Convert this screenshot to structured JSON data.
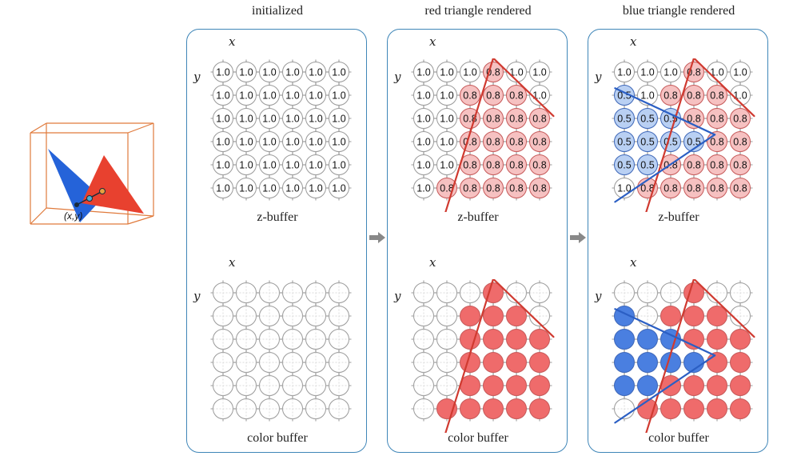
{
  "panels": [
    {
      "id": "initialized",
      "title": "initialized",
      "x_label": "x",
      "y_label": "y",
      "zbuffer_label": "z-buffer",
      "colorbuffer_label": "color buffer",
      "zbuffer": [
        [
          "1.0",
          "1.0",
          "1.0",
          "1.0",
          "1.0",
          "1.0"
        ],
        [
          "1.0",
          "1.0",
          "1.0",
          "1.0",
          "1.0",
          "1.0"
        ],
        [
          "1.0",
          "1.0",
          "1.0",
          "1.0",
          "1.0",
          "1.0"
        ],
        [
          "1.0",
          "1.0",
          "1.0",
          "1.0",
          "1.0",
          "1.0"
        ],
        [
          "1.0",
          "1.0",
          "1.0",
          "1.0",
          "1.0",
          "1.0"
        ],
        [
          "1.0",
          "1.0",
          "1.0",
          "1.0",
          "1.0",
          "1.0"
        ]
      ],
      "colors": [
        [
          "n",
          "n",
          "n",
          "n",
          "n",
          "n"
        ],
        [
          "n",
          "n",
          "n",
          "n",
          "n",
          "n"
        ],
        [
          "n",
          "n",
          "n",
          "n",
          "n",
          "n"
        ],
        [
          "n",
          "n",
          "n",
          "n",
          "n",
          "n"
        ],
        [
          "n",
          "n",
          "n",
          "n",
          "n",
          "n"
        ],
        [
          "n",
          "n",
          "n",
          "n",
          "n",
          "n"
        ]
      ],
      "edges": []
    },
    {
      "id": "red",
      "title": "red triangle rendered",
      "x_label": "x",
      "y_label": "y",
      "zbuffer_label": "z-buffer",
      "colorbuffer_label": "color buffer",
      "zbuffer": [
        [
          "1.0",
          "1.0",
          "1.0",
          "0.8",
          "1.0",
          "1.0"
        ],
        [
          "1.0",
          "1.0",
          "0.8",
          "0.8",
          "0.8",
          "1.0"
        ],
        [
          "1.0",
          "1.0",
          "0.8",
          "0.8",
          "0.8",
          "0.8"
        ],
        [
          "1.0",
          "1.0",
          "0.8",
          "0.8",
          "0.8",
          "0.8"
        ],
        [
          "1.0",
          "1.0",
          "0.8",
          "0.8",
          "0.8",
          "0.8"
        ],
        [
          "1.0",
          "0.8",
          "0.8",
          "0.8",
          "0.8",
          "0.8"
        ]
      ],
      "colors": [
        [
          "n",
          "n",
          "n",
          "r",
          "n",
          "n"
        ],
        [
          "n",
          "n",
          "r",
          "r",
          "r",
          "n"
        ],
        [
          "n",
          "n",
          "r",
          "r",
          "r",
          "r"
        ],
        [
          "n",
          "n",
          "r",
          "r",
          "r",
          "r"
        ],
        [
          "n",
          "n",
          "r",
          "r",
          "r",
          "r"
        ],
        [
          "n",
          "r",
          "r",
          "r",
          "r",
          "r"
        ]
      ],
      "edges": [
        {
          "color": "#d03a30",
          "points": [
            [
              0.8,
              6.5
            ],
            [
              3.0,
              -0.6
            ]
          ]
        },
        {
          "color": "#d03a30",
          "points": [
            [
              3.0,
              -0.6
            ],
            [
              5.6,
              1.9
            ]
          ]
        }
      ]
    },
    {
      "id": "blue",
      "title": "blue triangle rendered",
      "x_label": "x",
      "y_label": "y",
      "zbuffer_label": "z-buffer",
      "colorbuffer_label": "color buffer",
      "zbuffer": [
        [
          "1.0",
          "1.0",
          "1.0",
          "0.8",
          "1.0",
          "1.0"
        ],
        [
          "0.5",
          "1.0",
          "0.8",
          "0.8",
          "0.8",
          "1.0"
        ],
        [
          "0.5",
          "0.5",
          "0.5",
          "0.8",
          "0.8",
          "0.8"
        ],
        [
          "0.5",
          "0.5",
          "0.5",
          "0.5",
          "0.8",
          "0.8"
        ],
        [
          "0.5",
          "0.5",
          "0.8",
          "0.8",
          "0.8",
          "0.8"
        ],
        [
          "1.0",
          "0.8",
          "0.8",
          "0.8",
          "0.8",
          "0.8"
        ]
      ],
      "colors": [
        [
          "n",
          "n",
          "n",
          "r",
          "n",
          "n"
        ],
        [
          "b",
          "n",
          "r",
          "r",
          "r",
          "n"
        ],
        [
          "b",
          "b",
          "b",
          "r",
          "r",
          "r"
        ],
        [
          "b",
          "b",
          "b",
          "b",
          "r",
          "r"
        ],
        [
          "b",
          "b",
          "r",
          "r",
          "r",
          "r"
        ],
        [
          "n",
          "r",
          "r",
          "r",
          "r",
          "r"
        ]
      ],
      "edges": [
        {
          "color": "#d03a30",
          "points": [
            [
              0.8,
              6.5
            ],
            [
              3.0,
              -0.6
            ]
          ]
        },
        {
          "color": "#d03a30",
          "points": [
            [
              3.0,
              -0.6
            ],
            [
              5.6,
              1.9
            ]
          ]
        },
        {
          "color": "#2b5fc4",
          "points": [
            [
              -0.4,
              0.7
            ],
            [
              3.9,
              2.7
            ]
          ]
        },
        {
          "color": "#2b5fc4",
          "points": [
            [
              3.9,
              2.7
            ],
            [
              -0.4,
              5.6
            ]
          ]
        }
      ]
    }
  ],
  "palette": {
    "red_fill": "#ef6b6b",
    "red_light": "#f6c1c1",
    "blue_fill": "#4a7fe0",
    "blue_light": "#b9d0f3",
    "empty": "#ffffff",
    "cell_stroke": "#9a9a9a",
    "red_edge": "#d03a30",
    "blue_edge": "#2b5fc4",
    "panel_border": "#3f86b8",
    "arrow": "#888888"
  },
  "scene": {
    "point_label": "(x,y)",
    "box_color": "#e07a3c",
    "blue_triangle": "#2563d9",
    "red_triangle": "#e8412f"
  }
}
